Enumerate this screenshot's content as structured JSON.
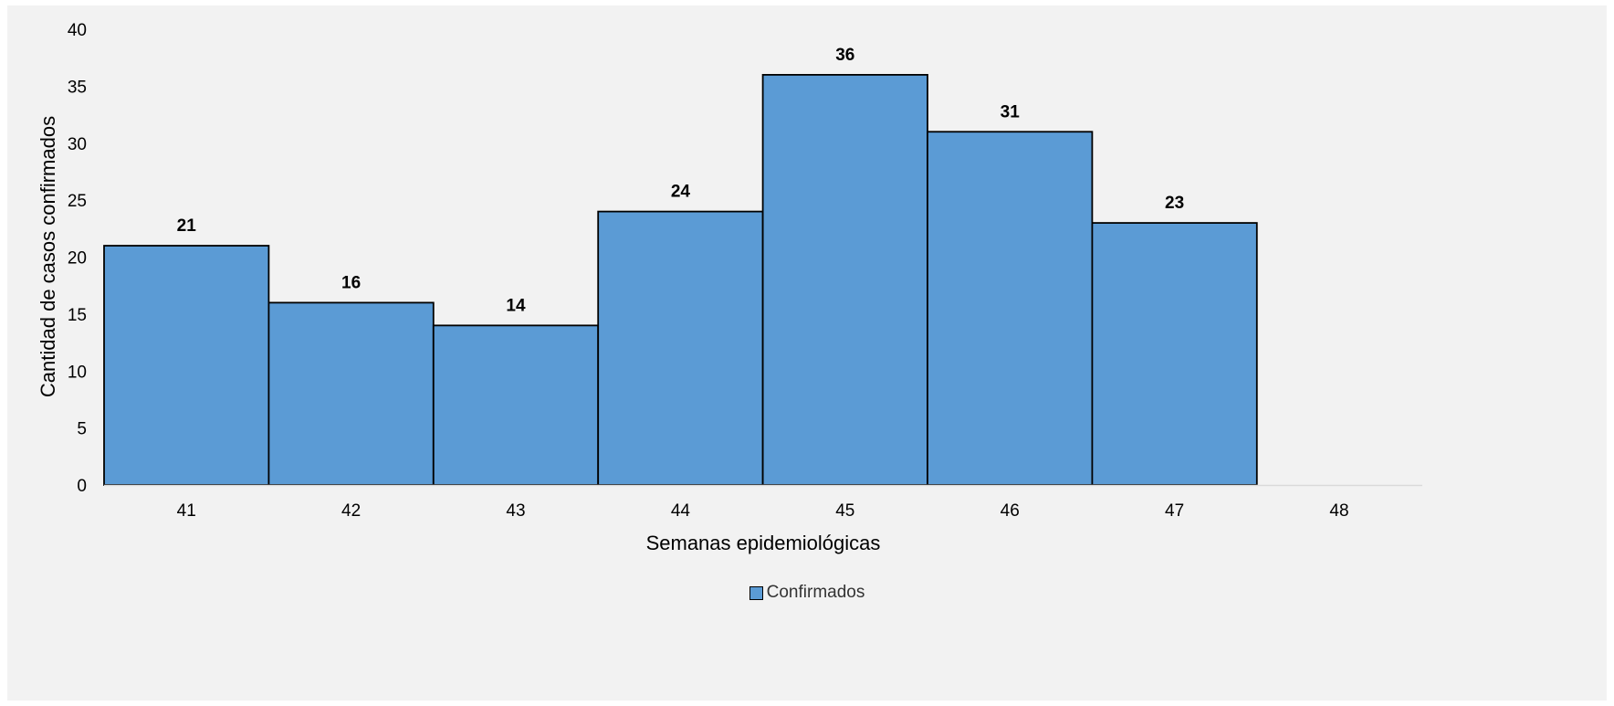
{
  "chart_data": {
    "type": "bar",
    "categories": [
      "41",
      "42",
      "43",
      "44",
      "45",
      "46",
      "47",
      "48"
    ],
    "series": [
      {
        "name": "Confirmados",
        "values": [
          21,
          16,
          14,
          24,
          36,
          31,
          23,
          null
        ]
      }
    ],
    "data_labels": [
      "21",
      "16",
      "14",
      "24",
      "36",
      "31",
      "23"
    ],
    "xlabel": "Semanas epidemiológicas",
    "ylabel": "Cantidad de casos confirmados",
    "ylim": [
      0,
      40
    ],
    "yticks": [
      "0",
      "5",
      "10",
      "15",
      "20",
      "25",
      "30",
      "35",
      "40"
    ],
    "grid": false,
    "legend_position": "bottom",
    "bar_color": "#5b9bd5",
    "bar_edge_color": "#000000",
    "background_color": "#f2f2f2"
  }
}
